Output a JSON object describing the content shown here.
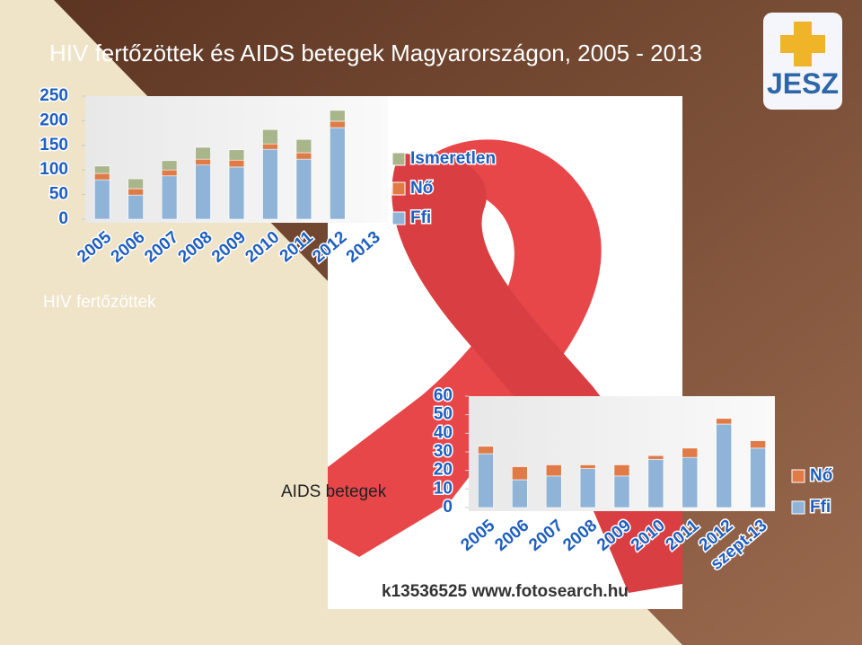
{
  "title": "HIV fertőzöttek és AIDS betegek Magyarországon, 2005 - 2013",
  "watermark": "k13536525 www.fotosearch.hu",
  "logo": "JESZ",
  "chart_data": [
    {
      "type": "bar",
      "stacked": true,
      "title": "HIV fertőzöttek",
      "categories": [
        "2005",
        "2006",
        "2007",
        "2008",
        "2009",
        "2010",
        "2011",
        "2012",
        "2013"
      ],
      "series": [
        {
          "name": "Ffi",
          "color": "#8fb4d8",
          "values": [
            80,
            49,
            88,
            110,
            106,
            142,
            122,
            186,
            null
          ]
        },
        {
          "name": "Nő",
          "color": "#e07b48",
          "values": [
            13,
            13,
            12,
            12,
            14,
            11,
            13,
            13,
            null
          ]
        },
        {
          "name": "Ismeretlen",
          "color": "#a9b58a",
          "values": [
            15,
            20,
            19,
            24,
            21,
            29,
            27,
            22,
            null
          ]
        }
      ],
      "ylim": [
        0,
        250
      ],
      "yticks": [
        0,
        50,
        100,
        150,
        200,
        250
      ]
    },
    {
      "type": "bar",
      "stacked": true,
      "title": "AIDS betegek",
      "categories": [
        "2005",
        "2006",
        "2007",
        "2008",
        "2009",
        "2010",
        "2011",
        "2012",
        "szept.13"
      ],
      "series": [
        {
          "name": "Ffi",
          "color": "#8fb4d8",
          "values": [
            29,
            15,
            17,
            21,
            17,
            26,
            27,
            45,
            32
          ]
        },
        {
          "name": "Nő",
          "color": "#e07b48",
          "values": [
            4,
            7,
            6,
            2,
            6,
            2,
            5,
            3,
            4
          ]
        }
      ],
      "ylim": [
        0,
        60
      ],
      "yticks": [
        0,
        10,
        20,
        30,
        40,
        50,
        60
      ]
    }
  ]
}
